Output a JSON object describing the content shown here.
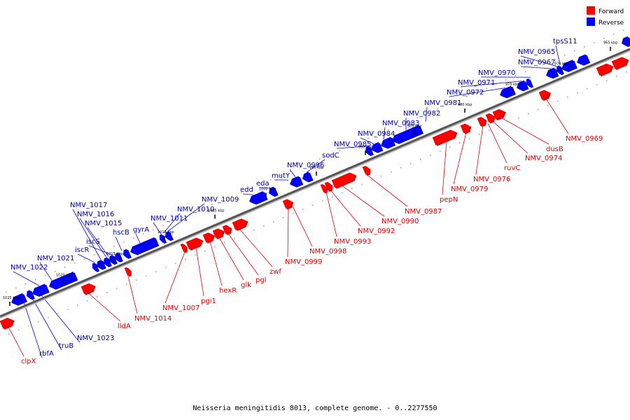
{
  "caption": "Neisseria meningitidis 8013, complete genome. - 0..2277550",
  "legend": {
    "forward": {
      "label": "Forward",
      "color": "#ff0000"
    },
    "reverse": {
      "label": "Reverse",
      "color": "#0000ff"
    }
  },
  "ticks": [
    "965 kbp",
    "970 kbp",
    "975 kbp",
    "980 kbp",
    "985 kbp",
    "990 kbp",
    "995 kbp",
    "1000 kbp",
    "1005 kbp",
    "1010 kbp",
    "1015 kbp",
    "1020 kbp",
    "1025 kbp"
  ],
  "reverse_genes": [
    "tpsS11",
    "NMV_0965",
    "NMV_0967",
    "NMV_0970",
    "NMV_0971",
    "NMV_0972",
    "NMV_0981",
    "NMV_0982",
    "NMV_0983",
    "NMV_0984",
    "NMV_0985",
    "sodC",
    "NMV_0996",
    "mutY",
    "eda",
    "edd",
    "NMV_1009",
    "NMV_1010",
    "NMV_1011",
    "gyrA",
    "hscB",
    "iscS",
    "NMV_1015",
    "NMV_1016",
    "NMV_1017",
    "iscR",
    "NMV_1021",
    "NMV_1022",
    "NMV_1023",
    "truB",
    "rbfA"
  ],
  "forward_genes": [
    "NMV_0969",
    "dusB",
    "NMV_0974",
    "ruvC",
    "NMV_0976",
    "NMV_0979",
    "pepN",
    "NMV_0987",
    "NMV_0990",
    "NMV_0992",
    "NMV_0993",
    "NMV_0998",
    "NMV_0999",
    "zwf",
    "pgl",
    "glk",
    "hexR",
    "pgi1",
    "NMV_1007",
    "NMV_1014",
    "lldA",
    "clpX"
  ]
}
